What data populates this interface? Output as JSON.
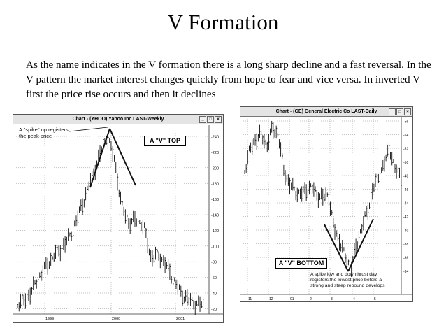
{
  "slide": {
    "title": "V Formation",
    "body": "As the name indicates in the V formation there is a long sharp decline and a fast reversal. In the V pattern the market interest changes quickly from hope to fear and vice versa. In inverted V first the price rise occurs and then it declines"
  },
  "left_chart": {
    "header": "Chart - (YHOO) Yahoo Inc LAST-Weekly",
    "annotation": "A \"spike\" up registers the peak price",
    "pattern_label": "A \"V\" TOP",
    "y_ticks": [
      "240",
      "220",
      "200",
      "180",
      "160",
      "140",
      "120",
      "100",
      "80",
      "60",
      "40",
      "20"
    ],
    "x_ticks": [
      "1999",
      "2000",
      "2001"
    ]
  },
  "right_chart": {
    "header": "Chart - (GE) General Electric Co LAST-Daily",
    "annotation": "A spike low and downthrust day, registers the lowest price before a strong and steep rebound develops",
    "pattern_label": "A \"V\" BOTTOM",
    "y_ticks": [
      "56",
      "54",
      "52",
      "50",
      "48",
      "46",
      "44",
      "42",
      "40",
      "38",
      "36",
      "34"
    ],
    "x_ticks": [
      "11",
      "12",
      "01",
      "2",
      "3",
      "4",
      "5"
    ]
  },
  "colors": {
    "text": "#000000",
    "header_bg": "#e4e4e4"
  }
}
